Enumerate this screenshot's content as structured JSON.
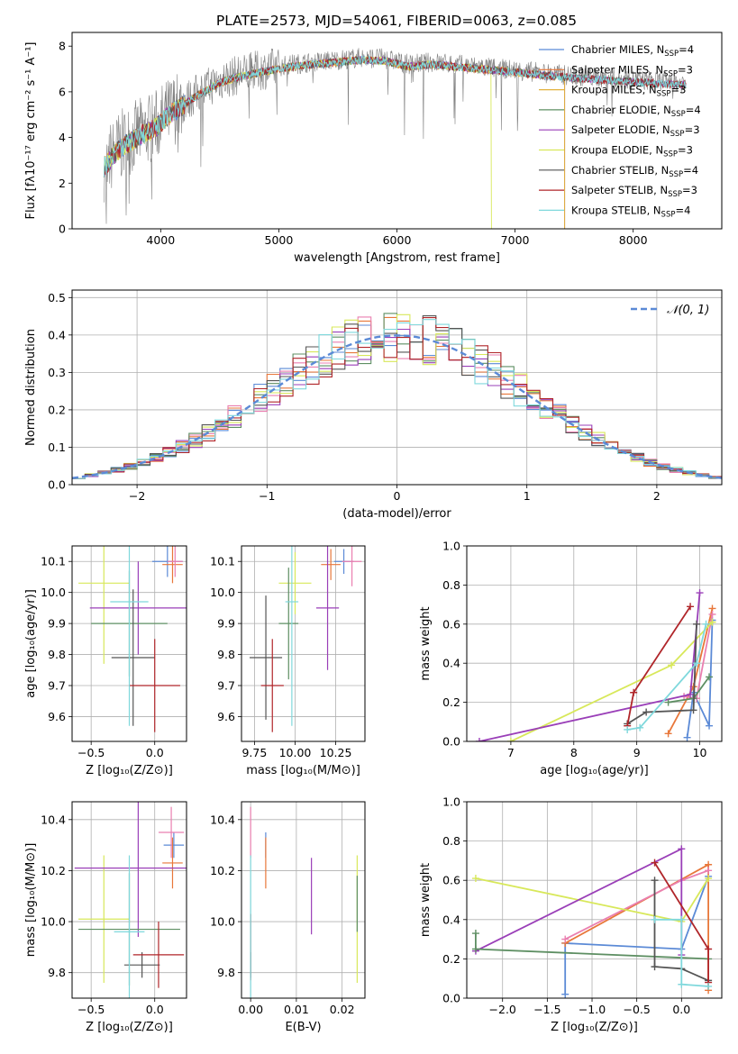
{
  "figure_title": "PLATE=2573, MJD=54061, FIBERID=0063, z=0.085",
  "colors": {
    "Chabrier MILES": "#5b8ad6",
    "Salpeter MILES": "#e8773a",
    "Kroupa MILES": "#e2b13c",
    "Chabrier ELODIE": "#5e8f63",
    "Salpeter ELODIE": "#9a3fb8",
    "Kroupa ELODIE": "#d8e85a",
    "Chabrier STELIB": "#555555",
    "Salpeter STELIB": "#b0262a",
    "Kroupa STELIB": "#7fd8dc",
    "pink": "#ea7fb0",
    "data": "#808080"
  },
  "chart_data": [
    {
      "id": "spectrum",
      "type": "line",
      "title": "PLATE=2573, MJD=54061, FIBERID=0063, z=0.085",
      "xlabel": "wavelength [Angstrom, rest frame]",
      "ylabel": "Flux [fλ10⁻¹⁷ erg cm⁻² s⁻¹ A⁻¹]",
      "xlim": [
        3250,
        8750
      ],
      "ylim": [
        0,
        8.6
      ],
      "xticks": [
        "4000",
        "5000",
        "6000",
        "7000",
        "8000"
      ],
      "yticks": [
        "0",
        "2",
        "4",
        "6",
        "8"
      ],
      "legend_position": "right",
      "legend": [
        {
          "name": "Chabrier MILES, N",
          "sub": "SSP",
          "tail": "=4"
        },
        {
          "name": "Salpeter MILES, N",
          "sub": "SSP",
          "tail": "=3"
        },
        {
          "name": "Kroupa MILES, N",
          "sub": "SSP",
          "tail": "=3"
        },
        {
          "name": "Chabrier ELODIE, N",
          "sub": "SSP",
          "tail": "=4"
        },
        {
          "name": "Salpeter ELODIE, N",
          "sub": "SSP",
          "tail": "=3"
        },
        {
          "name": "Kroupa ELODIE, N",
          "sub": "SSP",
          "tail": "=3"
        },
        {
          "name": "Chabrier STELIB, N",
          "sub": "SSP",
          "tail": "=4"
        },
        {
          "name": "Salpeter STELIB, N",
          "sub": "SSP",
          "tail": "=3"
        },
        {
          "name": "Kroupa STELIB, N",
          "sub": "SSP",
          "tail": "=4"
        }
      ],
      "continuum": [
        [
          3520,
          2.8
        ],
        [
          3650,
          3.6
        ],
        [
          3800,
          4.1
        ],
        [
          3950,
          4.5
        ],
        [
          4100,
          5.2
        ],
        [
          4300,
          5.9
        ],
        [
          4500,
          6.5
        ],
        [
          4700,
          6.8
        ],
        [
          4900,
          7.0
        ],
        [
          5100,
          7.2
        ],
        [
          5300,
          7.3
        ],
        [
          5500,
          7.4
        ],
        [
          5700,
          7.5
        ],
        [
          5900,
          7.45
        ],
        [
          6100,
          7.2
        ],
        [
          6300,
          7.3
        ],
        [
          6500,
          7.2
        ],
        [
          6700,
          7.1
        ],
        [
          6900,
          7.0
        ],
        [
          7100,
          6.9
        ],
        [
          7300,
          6.8
        ],
        [
          7500,
          6.7
        ],
        [
          7800,
          6.6
        ],
        [
          8100,
          6.5
        ],
        [
          8450,
          6.4
        ]
      ]
    },
    {
      "id": "residuals",
      "type": "histogram",
      "xlabel": "(data-model)/error",
      "ylabel": "Normed distribution",
      "xlim": [
        -2.5,
        2.5
      ],
      "ylim": [
        0,
        0.52
      ],
      "xticks": [
        "−2",
        "−1",
        "0",
        "1",
        "2"
      ],
      "yticks": [
        "0.0",
        "0.1",
        "0.2",
        "0.3",
        "0.4",
        "0.5"
      ],
      "legend": "𝒩(0, 1)",
      "legend_position": "top-right",
      "bin_width": 0.1
    },
    {
      "id": "age-vs-Z",
      "type": "errorbar",
      "xlabel": "Z [log₁₀(Z/Z⊙)]",
      "ylabel": "age  [log₁₀(age/yr)]",
      "xlim": [
        -0.65,
        0.25
      ],
      "ylim": [
        9.52,
        10.15
      ],
      "xticks": [
        "−0.5",
        "0.0"
      ],
      "yticks": [
        "9.6",
        "9.7",
        "9.8",
        "9.9",
        "10.0",
        "10.1"
      ],
      "points": [
        {
          "model": "Chabrier MILES",
          "x": 0.1,
          "xerr": 0.12,
          "y": 10.1,
          "yerr": 0.05
        },
        {
          "model": "Salpeter MILES",
          "x": 0.14,
          "xerr": 0.08,
          "y": 10.09,
          "yerr": 0.06
        },
        {
          "model": "pink",
          "x": 0.16,
          "xerr": 0.06,
          "y": 10.1,
          "yerr": 0.05
        },
        {
          "model": "Kroupa ELODIE",
          "x": -0.4,
          "xerr": 0.2,
          "y": 10.03,
          "yerr": 0.26
        },
        {
          "model": "Salpeter ELODIE",
          "x": -0.13,
          "xerr": 0.38,
          "y": 9.95,
          "yerr": 0.15
        },
        {
          "model": "Chabrier ELODIE",
          "x": -0.2,
          "xerr": 0.3,
          "y": 9.9,
          "yerr": 0.17
        },
        {
          "model": "Chabrier STELIB",
          "x": -0.17,
          "xerr": 0.17,
          "y": 9.79,
          "yerr": 0.22
        },
        {
          "model": "Salpeter STELIB",
          "x": 0.0,
          "xerr": 0.2,
          "y": 9.7,
          "yerr": 0.15
        },
        {
          "model": "Kroupa STELIB",
          "x": -0.2,
          "xerr": 0.15,
          "y": 9.97,
          "yerr": 0.4
        }
      ]
    },
    {
      "id": "age-vs-mass",
      "type": "errorbar",
      "xlabel": "mass [log₁₀(M/M⊙)]",
      "ylabel": "",
      "xlim": [
        9.67,
        10.43
      ],
      "ylim": [
        9.52,
        10.15
      ],
      "xticks": [
        "9.75",
        "10.00",
        "10.25"
      ],
      "yticks": [
        "9.6",
        "9.7",
        "9.8",
        "9.9",
        "10.0",
        "10.1"
      ],
      "points": [
        {
          "model": "Chabrier MILES",
          "x": 10.3,
          "xerr": 0.06,
          "y": 10.1,
          "yerr": 0.04
        },
        {
          "model": "Salpeter MILES",
          "x": 10.22,
          "xerr": 0.06,
          "y": 10.09,
          "yerr": 0.05
        },
        {
          "model": "pink",
          "x": 10.35,
          "xerr": 0.06,
          "y": 10.1,
          "yerr": 0.08
        },
        {
          "model": "Kroupa ELODIE",
          "x": 10.0,
          "xerr": 0.1,
          "y": 10.03,
          "yerr": 0.1
        },
        {
          "model": "Salpeter ELODIE",
          "x": 10.2,
          "xerr": 0.07,
          "y": 9.95,
          "yerr": 0.2
        },
        {
          "model": "Chabrier ELODIE",
          "x": 9.96,
          "xerr": 0.06,
          "y": 9.9,
          "yerr": 0.18
        },
        {
          "model": "Chabrier STELIB",
          "x": 9.82,
          "xerr": 0.1,
          "y": 9.79,
          "yerr": 0.2
        },
        {
          "model": "Salpeter STELIB",
          "x": 9.86,
          "xerr": 0.07,
          "y": 9.7,
          "yerr": 0.15
        },
        {
          "model": "Kroupa STELIB",
          "x": 9.98,
          "xerr": 0.04,
          "y": 9.97,
          "yerr": 0.4
        }
      ]
    },
    {
      "id": "weight-vs-age",
      "type": "line",
      "xlabel": "age  [log₁₀(age/yr)]",
      "ylabel": "mass weight",
      "xlim": [
        6.3,
        10.35
      ],
      "ylim": [
        0,
        1.0
      ],
      "xticks": [
        "7",
        "8",
        "9",
        "10"
      ],
      "yticks": [
        "0.0",
        "0.2",
        "0.4",
        "0.6",
        "0.8",
        "1.0"
      ],
      "series": [
        {
          "model": "Chabrier MILES",
          "x": [
            9.8,
            9.9,
            10.15,
            10.2
          ],
          "y": [
            0.02,
            0.25,
            0.08,
            0.62
          ]
        },
        {
          "model": "Salpeter MILES",
          "x": [
            9.5,
            9.9,
            10.2
          ],
          "y": [
            0.04,
            0.28,
            0.68
          ]
        },
        {
          "model": "pink",
          "x": [
            9.75,
            9.95,
            10.2
          ],
          "y": [
            0.23,
            0.22,
            0.65
          ]
        },
        {
          "model": "Kroupa ELODIE",
          "x": [
            7.0,
            9.55,
            10.2
          ],
          "y": [
            0.0,
            0.39,
            0.61
          ]
        },
        {
          "model": "Salpeter ELODIE",
          "x": [
            6.5,
            9.85,
            10.0
          ],
          "y": [
            0.0,
            0.24,
            0.76
          ]
        },
        {
          "model": "Chabrier ELODIE",
          "x": [
            9.5,
            9.9,
            10.15
          ],
          "y": [
            0.2,
            0.22,
            0.33
          ]
        },
        {
          "model": "Chabrier STELIB",
          "x": [
            8.85,
            9.15,
            9.9,
            9.95
          ],
          "y": [
            0.09,
            0.15,
            0.16,
            0.6
          ]
        },
        {
          "model": "Salpeter STELIB",
          "x": [
            8.85,
            8.95,
            9.85
          ],
          "y": [
            0.08,
            0.25,
            0.69
          ]
        },
        {
          "model": "Kroupa STELIB",
          "x": [
            8.85,
            9.05,
            9.95,
            10.1
          ],
          "y": [
            0.06,
            0.07,
            0.4,
            0.6
          ]
        }
      ]
    },
    {
      "id": "mass-vs-Z",
      "type": "errorbar",
      "xlabel": "Z [log₁₀(Z/Z⊙)]",
      "ylabel": "mass [log₁₀(M/M⊙)]",
      "xlim": [
        -0.65,
        0.25
      ],
      "ylim": [
        9.7,
        10.47
      ],
      "xticks": [
        "−0.5",
        "0.0"
      ],
      "yticks": [
        "9.8",
        "10.0",
        "10.2",
        "10.4"
      ],
      "points": [
        {
          "model": "Chabrier MILES",
          "x": 0.15,
          "xerr": 0.08,
          "y": 10.3,
          "yerr": 0.05
        },
        {
          "model": "Salpeter MILES",
          "x": 0.14,
          "xerr": 0.08,
          "y": 10.23,
          "yerr": 0.1
        },
        {
          "model": "pink",
          "x": 0.13,
          "xerr": 0.1,
          "y": 10.35,
          "yerr": 0.1
        },
        {
          "model": "Kroupa ELODIE",
          "x": -0.4,
          "xerr": 0.2,
          "y": 10.01,
          "yerr": 0.25
        },
        {
          "model": "Salpeter ELODIE",
          "x": -0.13,
          "xerr": 0.5,
          "y": 10.21,
          "yerr": 0.27
        },
        {
          "model": "Chabrier ELODIE",
          "x": -0.2,
          "xerr": 0.4,
          "y": 9.97,
          "yerr": 0.22
        },
        {
          "model": "Chabrier STELIB",
          "x": -0.1,
          "xerr": 0.14,
          "y": 9.83,
          "yerr": 0.05
        },
        {
          "model": "Salpeter STELIB",
          "x": 0.03,
          "xerr": 0.2,
          "y": 9.87,
          "yerr": 0.13
        },
        {
          "model": "Kroupa STELIB",
          "x": -0.2,
          "xerr": 0.12,
          "y": 9.96,
          "yerr": 0.3
        }
      ]
    },
    {
      "id": "mass-vs-EBV",
      "type": "errorbar",
      "xlabel": "E(B-V)",
      "ylabel": "",
      "xlim": [
        -0.002,
        0.025
      ],
      "ylim": [
        9.7,
        10.47
      ],
      "xticks": [
        "0.00",
        "0.01",
        "0.02"
      ],
      "yticks": [
        "9.8",
        "10.0",
        "10.2",
        "10.4"
      ],
      "points": [
        {
          "model": "Chabrier MILES",
          "x": 0.0033,
          "y": 10.3,
          "yerr": 0.05
        },
        {
          "model": "Salpeter MILES",
          "x": 0.0033,
          "y": 10.23,
          "yerr": 0.1
        },
        {
          "model": "pink",
          "x": 0.0,
          "y": 10.35,
          "yerr": 0.1
        },
        {
          "model": "Kroupa ELODIE",
          "x": 0.0233,
          "y": 10.01,
          "yerr": 0.25
        },
        {
          "model": "Salpeter ELODIE",
          "x": 0.0133,
          "y": 10.1,
          "yerr": 0.15
        },
        {
          "model": "Chabrier ELODIE",
          "x": 0.0233,
          "y": 10.07,
          "yerr": 0.11
        },
        {
          "model": "Chabrier STELIB",
          "x": 0.0,
          "y": 9.83,
          "yerr": 0.05
        },
        {
          "model": "Salpeter STELIB",
          "x": 0.0,
          "y": 9.9,
          "yerr": 0.13
        },
        {
          "model": "Kroupa STELIB",
          "x": 0.0,
          "y": 9.96,
          "yerr": 0.3
        }
      ]
    },
    {
      "id": "weight-vs-Z",
      "type": "line",
      "xlabel": "Z [log₁₀(Z/Z⊙)]",
      "ylabel": "mass weight",
      "xlim": [
        -2.4,
        0.45
      ],
      "ylim": [
        0,
        1.0
      ],
      "xticks": [
        "−2.0",
        "−1.5",
        "−1.0",
        "−0.5",
        "0.0"
      ],
      "yticks": [
        "0.0",
        "0.2",
        "0.4",
        "0.6",
        "0.8",
        "1.0"
      ],
      "series": [
        {
          "model": "Chabrier MILES",
          "x": [
            -1.3,
            -1.3,
            0.0,
            0.3
          ],
          "y": [
            0.02,
            0.28,
            0.25,
            0.62
          ]
        },
        {
          "model": "Salpeter MILES",
          "x": [
            -1.3,
            0.3,
            0.3
          ],
          "y": [
            0.28,
            0.68,
            0.04
          ]
        },
        {
          "model": "pink",
          "x": [
            -1.3,
            0.0,
            0.3
          ],
          "y": [
            0.3,
            0.6,
            0.65
          ]
        },
        {
          "model": "Kroupa ELODIE",
          "x": [
            -2.3,
            0.0,
            0.3
          ],
          "y": [
            0.61,
            0.39,
            0.61
          ]
        },
        {
          "model": "Salpeter ELODIE",
          "x": [
            -2.3,
            0.0,
            0.0
          ],
          "y": [
            0.24,
            0.76,
            0.22
          ]
        },
        {
          "model": "Chabrier ELODIE",
          "x": [
            -2.3,
            -2.3,
            0.3
          ],
          "y": [
            0.33,
            0.25,
            0.2
          ]
        },
        {
          "model": "Chabrier STELIB",
          "x": [
            -0.3,
            -0.3,
            0.0,
            0.3
          ],
          "y": [
            0.6,
            0.16,
            0.15,
            0.09
          ]
        },
        {
          "model": "Salpeter STELIB",
          "x": [
            -0.3,
            0.3,
            0.3
          ],
          "y": [
            0.69,
            0.25,
            0.08
          ]
        },
        {
          "model": "Kroupa STELIB",
          "x": [
            -0.3,
            0.0,
            0.0,
            0.3
          ],
          "y": [
            0.4,
            0.4,
            0.07,
            0.06
          ]
        }
      ]
    }
  ]
}
